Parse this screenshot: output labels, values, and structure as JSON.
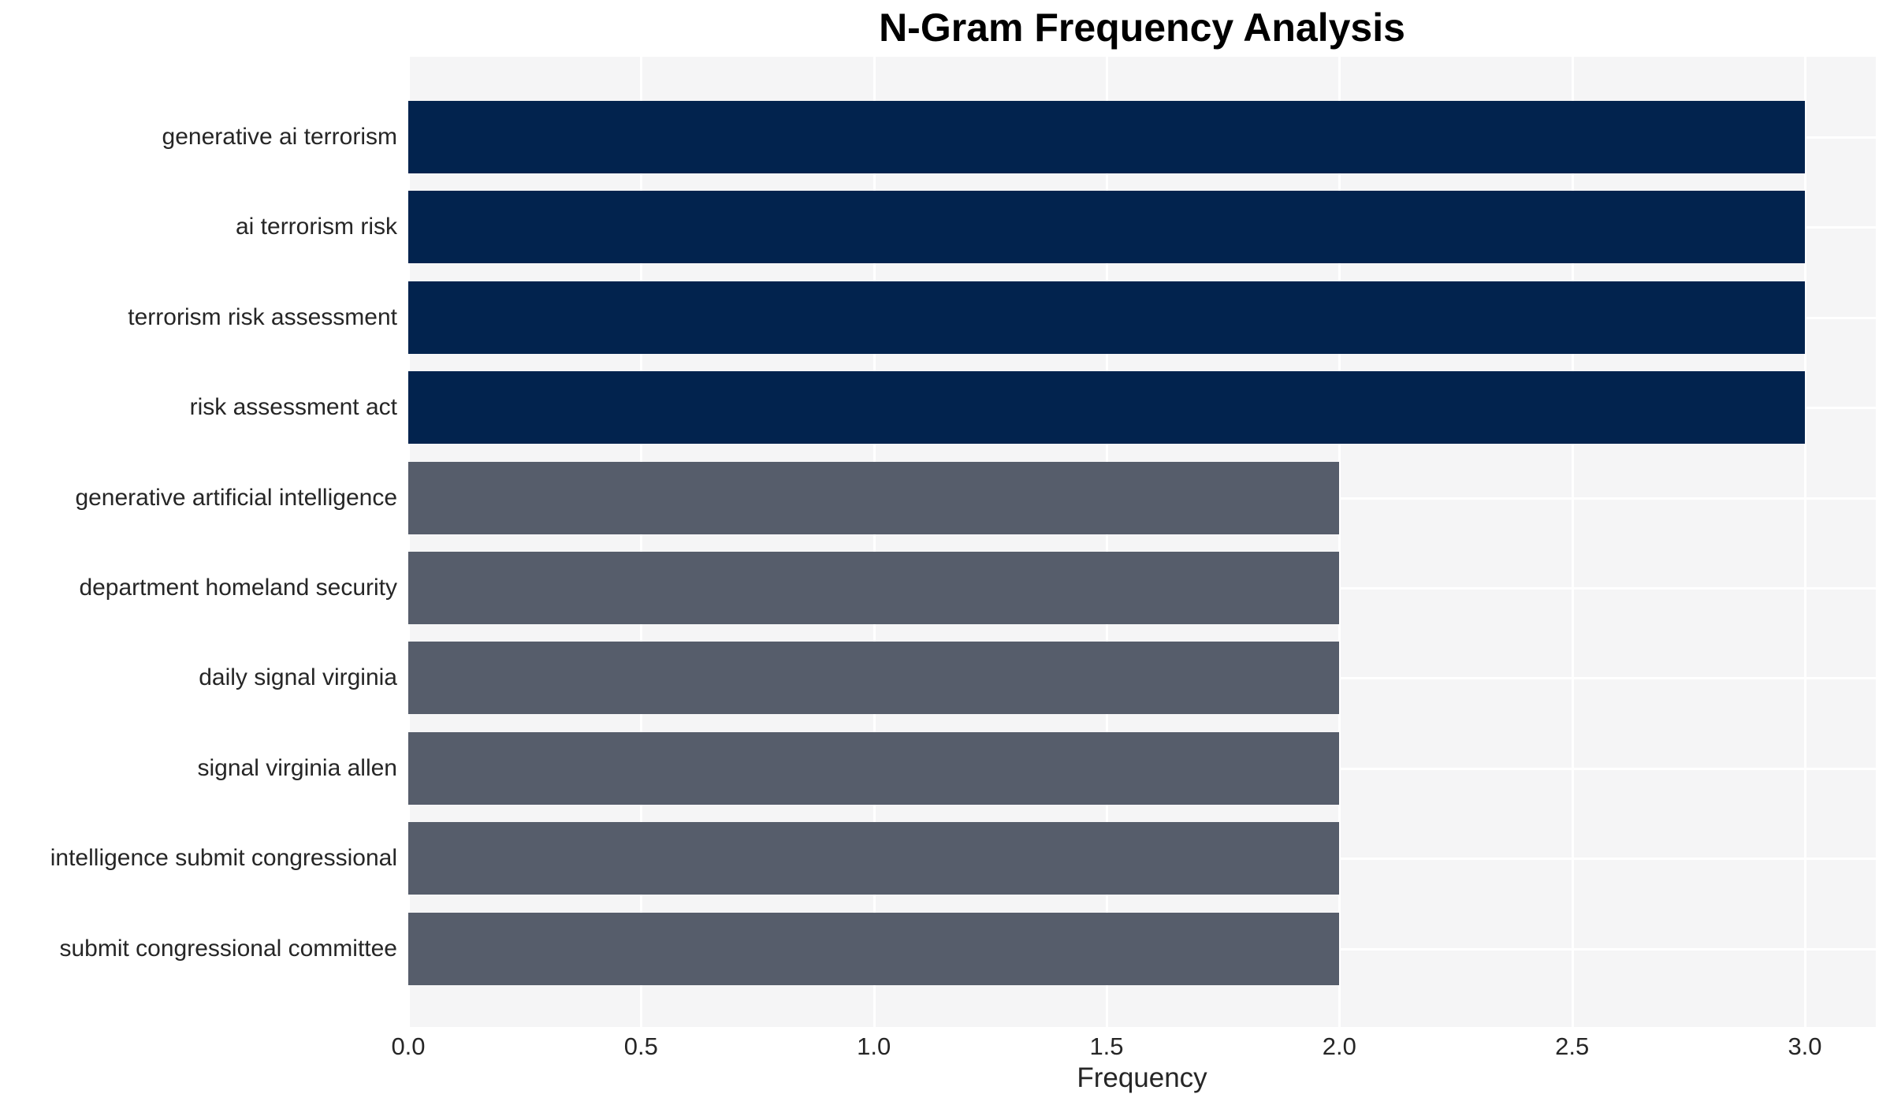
{
  "chart_data": {
    "type": "bar",
    "orientation": "horizontal",
    "title": "N-Gram Frequency Analysis",
    "xlabel": "Frequency",
    "ylabel": "",
    "categories": [
      "generative ai terrorism",
      "ai terrorism risk",
      "terrorism risk assessment",
      "risk assessment act",
      "generative artificial intelligence",
      "department homeland security",
      "daily signal virginia",
      "signal virginia allen",
      "intelligence submit congressional",
      "submit congressional committee"
    ],
    "values": [
      3,
      3,
      3,
      3,
      2,
      2,
      2,
      2,
      2,
      2
    ],
    "bar_colors": [
      "#02234e",
      "#02234e",
      "#02234e",
      "#02234e",
      "#565d6b",
      "#565d6b",
      "#565d6b",
      "#565d6b",
      "#565d6b",
      "#565d6b"
    ],
    "xticks": [
      0.0,
      0.5,
      1.0,
      1.5,
      2.0,
      2.5,
      3.0
    ],
    "xtick_labels": [
      "0.0",
      "0.5",
      "1.0",
      "1.5",
      "2.0",
      "2.5",
      "3.0"
    ],
    "xlim": [
      0,
      3.155
    ],
    "grid": true,
    "legend": false
  },
  "style": {
    "plot_background": "#f5f5f6",
    "grid_color": "#ffffff",
    "title_color": "#000000",
    "label_color": "#262626",
    "high_value_color": "#02234e",
    "low_value_color": "#565d6b"
  }
}
